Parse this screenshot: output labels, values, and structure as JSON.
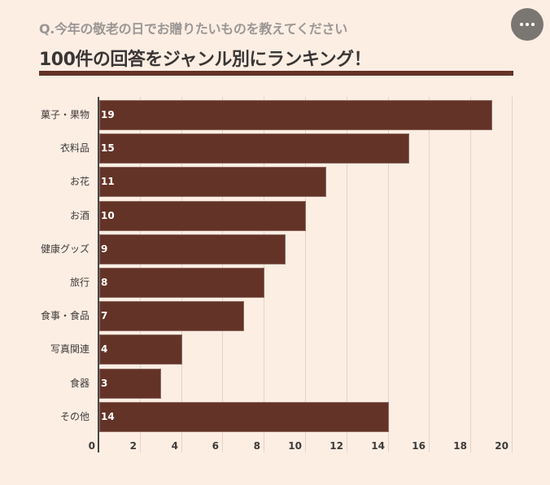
{
  "header": {
    "subtitle": "Q.今年の敬老の日でお贈りたいものを教えてください",
    "title": "100件の回答をジャンル別にランキング！",
    "menu_icon": "more-horizontal-icon"
  },
  "colors": {
    "background": "#fdeee4",
    "bar": "#643327",
    "rule": "#663326",
    "menu_button": "#7a7672",
    "gridline": "#e3d3c9"
  },
  "chart_data": {
    "type": "bar",
    "orientation": "horizontal",
    "title": "100件の回答をジャンル別にランキング！",
    "subtitle": "Q.今年の敬老の日でお贈りたいものを教えてください",
    "categories": [
      "菓子・果物",
      "衣料品",
      "お花",
      "お酒",
      "健康グッズ",
      "旅行",
      "食事・食品",
      "写真関連",
      "食器",
      "その他"
    ],
    "values": [
      19,
      15,
      11,
      10,
      9,
      8,
      7,
      4,
      3,
      14
    ],
    "value_labels": [
      "19",
      "15",
      "11",
      "10",
      "9",
      "8",
      "7",
      "4",
      "3",
      "14"
    ],
    "xlabel": "",
    "ylabel": "",
    "xlim": [
      0,
      20
    ],
    "xticks": [
      "0",
      "2",
      "4",
      "6",
      "8",
      "10",
      "12",
      "14",
      "16",
      "18",
      "20"
    ],
    "grid": true,
    "legend": null
  }
}
